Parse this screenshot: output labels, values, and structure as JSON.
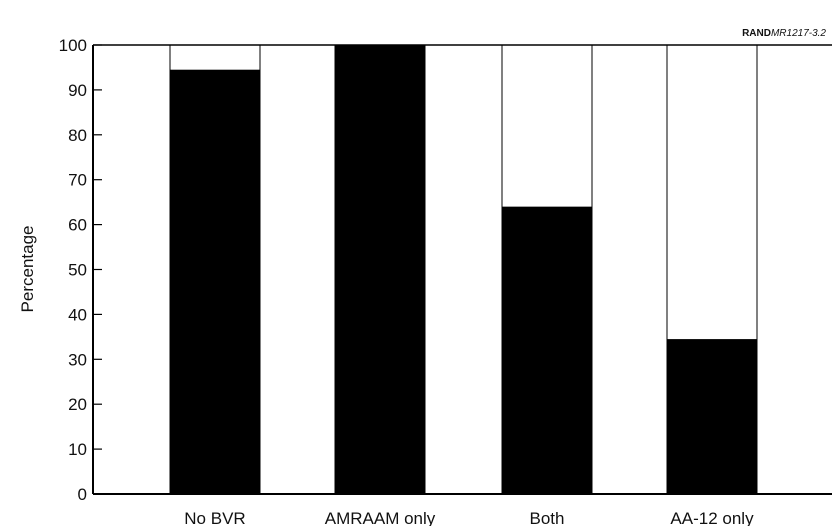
{
  "source_label": {
    "bold": "RAND",
    "italic": "MR1217-3.2"
  },
  "chart_data": {
    "type": "bar",
    "title": "",
    "xlabel": "",
    "ylabel": "Percentage",
    "ylim": [
      0,
      100
    ],
    "yticks": [
      0,
      10,
      20,
      30,
      40,
      50,
      60,
      70,
      80,
      90,
      100
    ],
    "categories": [
      "No BVR",
      "AMRAAM only",
      "Both",
      "AA-12 only"
    ],
    "series": [
      {
        "values": [
          94.5,
          100,
          64,
          34.5
        ],
        "color": "#000000"
      }
    ],
    "background_color": "#ffffff",
    "grid": false,
    "legend": "none"
  }
}
